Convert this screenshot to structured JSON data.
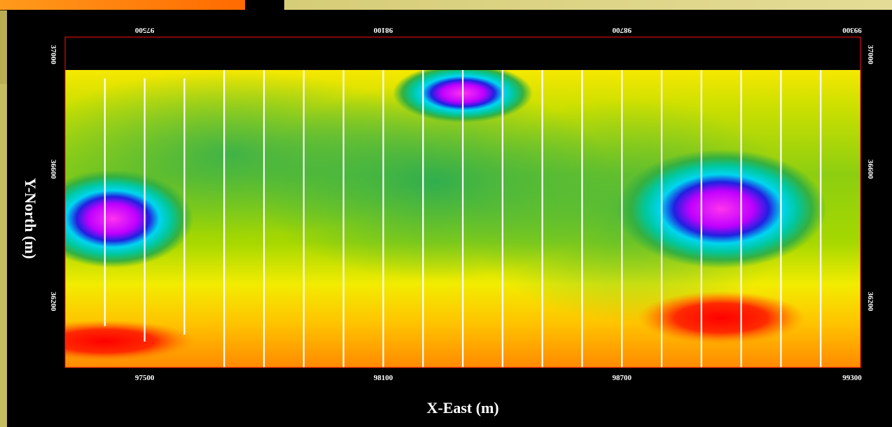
{
  "chart_data": {
    "type": "heatmap",
    "title": "",
    "xlabel": "X-East (m)",
    "ylabel": "Y-North (m)",
    "xlim": [
      97300,
      99300
    ],
    "ylim": [
      36000,
      37000
    ],
    "x_ticks_bottom": [
      "97500",
      "98100",
      "98700",
      "99300"
    ],
    "x_ticks_top": [
      "97500",
      "98100",
      "98700",
      "99300"
    ],
    "y_ticks_left": [
      "37000",
      "36600",
      "36200"
    ],
    "y_ticks_right": [
      "37000",
      "36600",
      "36200"
    ],
    "colors": {
      "low": "#ff00ff",
      "mid_low": "#00e5ff",
      "mid": "#23b86a",
      "mid_high": "#b8e000",
      "high": "#ffee00",
      "highest": "#ff0000"
    },
    "anomalies": [
      {
        "x": 98300,
        "y": 36830,
        "level": "low"
      },
      {
        "x": 98950,
        "y": 36480,
        "level": "low"
      },
      {
        "x": 97420,
        "y": 36450,
        "level": "low"
      },
      {
        "x": 97400,
        "y": 36080,
        "level": "highest"
      },
      {
        "x": 98950,
        "y": 36150,
        "level": "highest"
      }
    ],
    "survey_lines_x": [
      97400,
      97500,
      97600,
      97700,
      97800,
      97900,
      98000,
      98100,
      98200,
      98300,
      98400,
      98500,
      98600,
      98700,
      98800,
      98900,
      99000,
      99100,
      99200
    ]
  }
}
